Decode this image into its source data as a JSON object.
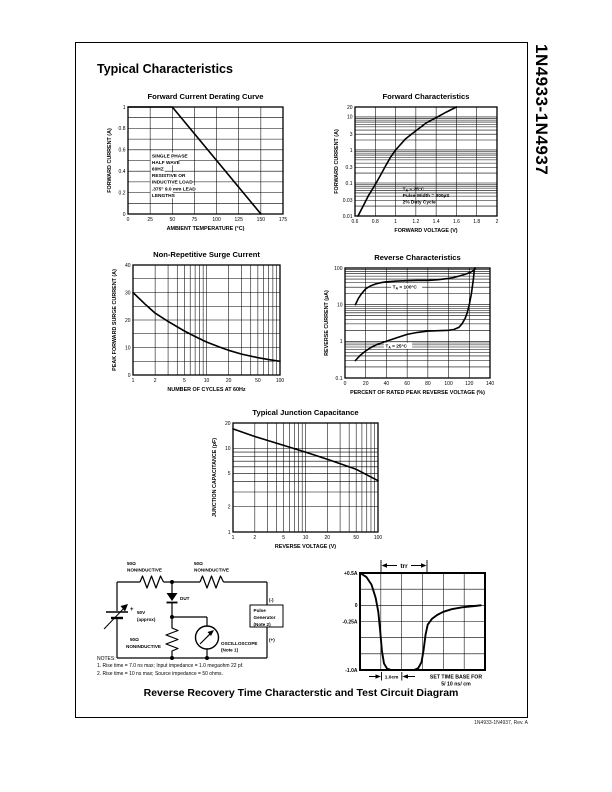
{
  "page": {
    "title": "Typical Characteristics",
    "side_label": "1N4933-1N4937",
    "footer": "1N4933-1N4937, Rev. A",
    "caption": "Reverse Recovery Time Characterstic and Test Circuit Diagram",
    "notes": {
      "heading": "NOTES:",
      "note1": "1. Rise time = 7.0 ns max; Input impedance = 1.0 megaohm 22 pf.",
      "note2": "2. Rise time = 10 ns max; Source impedance = 50 ohms."
    }
  },
  "circuit": {
    "r1_value": "50Ω",
    "r1_type": "NONINDUCTIVE",
    "r2_value": "50Ω",
    "r2_type": "NONINDUCTIVE",
    "r3_value": "50Ω",
    "r3_type": "NONINDUCTIVE",
    "dut_label": "DUT",
    "source_plus": "+",
    "source_value": "50V",
    "source_note": "(approx)",
    "scope_label": "OSCILLOSCOPE",
    "scope_note": "(Note 1)",
    "generator_line1": "Pulse",
    "generator_line2": "Generator",
    "generator_line3": "(Note 2)",
    "neg_terminal": "(-)",
    "pos_terminal": "(+)"
  },
  "trr": {
    "trr_label": "trr",
    "cm_label": "1.0cm",
    "timebase_line1": "SET TIME BASE FOR",
    "timebase_line2": "5/ 10 ns/ cm"
  },
  "chart_data": [
    {
      "type": "line",
      "title": "Forward Current Derating Curve",
      "xlabel": "AMBIENT TEMPERATURE (°C)",
      "ylabel": "FORWARD CURRENT (A)",
      "x": {
        "type": "linear",
        "min": 0,
        "max": 175,
        "grid_step": 25,
        "ticks": [
          0,
          25,
          50,
          75,
          100,
          125,
          150,
          175
        ]
      },
      "y": {
        "type": "linear",
        "min": 0,
        "max": 1,
        "grid_step": 0.1,
        "ticks": [
          1,
          0.8,
          0.6,
          0.4,
          0.2,
          0
        ]
      },
      "series": [
        {
          "name": "derating-line",
          "points": [
            [
              0,
              1
            ],
            [
              50,
              1
            ],
            [
              150,
              0
            ]
          ]
        }
      ],
      "annotations": [
        {
          "x": 27,
          "y": 0.53,
          "bg": true,
          "lines": [
            "SINGLE PHASE",
            "HALF WAVE",
            "60HZ",
            "RESISTIVE OR",
            "INDUCTIVE LOAD",
            ".375\" 9.0 mm LEAD",
            "LENGTHS"
          ]
        }
      ]
    },
    {
      "type": "line",
      "title": "Forward Characteristics",
      "xlabel": "FORWARD VOLTAGE (V)",
      "ylabel": "FORWARD CURRENT (A)",
      "x": {
        "type": "linear",
        "min": 0.6,
        "max": 2,
        "grid_step": 0.2,
        "ticks": [
          0.6,
          0.8,
          1,
          1.2,
          1.4,
          1.6,
          1.8,
          2
        ]
      },
      "y": {
        "type": "log",
        "min": 0.01,
        "max": 20,
        "ticks": [
          20,
          10,
          3,
          1,
          0.3,
          0.1,
          0.03,
          0.01
        ]
      },
      "series": [
        {
          "name": "forward-voltage-current",
          "points": [
            [
              0.63,
              0.01
            ],
            [
              0.68,
              0.02
            ],
            [
              0.73,
              0.04
            ],
            [
              0.8,
              0.09
            ],
            [
              0.85,
              0.17
            ],
            [
              0.9,
              0.32
            ],
            [
              0.95,
              0.6
            ],
            [
              1,
              1
            ],
            [
              1.1,
              2.2
            ],
            [
              1.2,
              3.8
            ],
            [
              1.3,
              6.5
            ],
            [
              1.4,
              9.5
            ],
            [
              1.5,
              14
            ],
            [
              1.6,
              20
            ]
          ]
        }
      ],
      "annotations": [
        {
          "x": 1.07,
          "y": 0.06,
          "bg": false,
          "lines": [
            "T_A = 25°C",
            "Pulse Width = 300µS",
            "2% Duty Cycle"
          ]
        }
      ]
    },
    {
      "type": "line",
      "title": "Non-Repetitive Surge Current",
      "xlabel": "NUMBER OF CYCLES AT 60Hz",
      "ylabel": "PEAK FORWARD SURGE CURRENT (A)",
      "x": {
        "type": "log",
        "min": 1,
        "max": 100,
        "ticks": [
          1,
          2,
          5,
          10,
          20,
          50,
          100
        ]
      },
      "y": {
        "type": "linear",
        "min": 0,
        "max": 40,
        "grid_step": 5,
        "ticks": [
          40,
          30,
          20,
          10,
          0
        ]
      },
      "series": [
        {
          "name": "surge-current",
          "points": [
            [
              1,
              30
            ],
            [
              1.5,
              25.5
            ],
            [
              2,
              22.5
            ],
            [
              3,
              19.5
            ],
            [
              5,
              16
            ],
            [
              7,
              14
            ],
            [
              10,
              12
            ],
            [
              15,
              10.2
            ],
            [
              20,
              9
            ],
            [
              30,
              7.6
            ],
            [
              50,
              6.3
            ],
            [
              70,
              5.6
            ],
            [
              100,
              5
            ]
          ]
        }
      ]
    },
    {
      "type": "line",
      "title": "Reverse Characteristics",
      "xlabel": "PERCENT OF RATED PEAK REVERSE VOLTAGE (%)",
      "ylabel": "REVERSE CURRENT (µA)",
      "x": {
        "type": "linear",
        "min": 0,
        "max": 140,
        "grid_step": 20,
        "ticks": [
          0,
          20,
          40,
          60,
          80,
          100,
          120,
          140
        ]
      },
      "y": {
        "type": "log",
        "min": 0.1,
        "max": 100,
        "ticks": [
          100,
          10,
          1,
          0.1
        ]
      },
      "series": [
        {
          "name": "TA-100C",
          "points": [
            [
              10,
              10
            ],
            [
              13,
              15
            ],
            [
              16,
              20
            ],
            [
              20,
              27
            ],
            [
              25,
              33
            ],
            [
              30,
              37
            ],
            [
              35,
              40
            ],
            [
              40,
              42
            ],
            [
              50,
              44
            ],
            [
              60,
              45
            ],
            [
              70,
              46
            ],
            [
              80,
              46
            ],
            [
              90,
              48
            ],
            [
              100,
              52
            ],
            [
              105,
              55
            ],
            [
              110,
              60
            ],
            [
              115,
              66
            ],
            [
              120,
              74
            ],
            [
              123,
              82
            ],
            [
              125,
              92
            ],
            [
              126,
              100
            ]
          ]
        },
        {
          "name": "TA-25C",
          "points": [
            [
              10,
              0.3
            ],
            [
              15,
              0.42
            ],
            [
              20,
              0.55
            ],
            [
              25,
              0.68
            ],
            [
              30,
              0.8
            ],
            [
              40,
              1
            ],
            [
              50,
              1.25
            ],
            [
              60,
              1.55
            ],
            [
              70,
              1.75
            ],
            [
              80,
              1.9
            ],
            [
              90,
              1.95
            ],
            [
              100,
              2
            ],
            [
              105,
              2.1
            ],
            [
              110,
              2.4
            ],
            [
              113,
              3
            ],
            [
              116,
              4.2
            ],
            [
              118,
              6
            ],
            [
              120,
              10
            ],
            [
              122,
              20
            ],
            [
              124,
              50
            ],
            [
              125,
              100
            ]
          ]
        }
      ],
      "annotations": [
        {
          "x": 46,
          "y": 28,
          "bg": true,
          "lines": [
            "T_A = 100°C"
          ]
        },
        {
          "x": 39,
          "y": 0.68,
          "bg": true,
          "lines": [
            "T_A = 25°C"
          ]
        }
      ]
    },
    {
      "type": "line",
      "title": "Typical Junction Capacitance",
      "xlabel": "REVERSE VOLTAGE (V)",
      "ylabel": "JUNCTION CAPACITANCE (pF)",
      "x": {
        "type": "log",
        "min": 1,
        "max": 100,
        "ticks": [
          1,
          2,
          5,
          10,
          20,
          50,
          100
        ]
      },
      "y": {
        "type": "log",
        "min": 1,
        "max": 20,
        "ticks": [
          20,
          10,
          5,
          2,
          1
        ]
      },
      "series": [
        {
          "name": "junction-capacitance",
          "points": [
            [
              1,
              17
            ],
            [
              2,
              13.8
            ],
            [
              5,
              10.8
            ],
            [
              10,
              9
            ],
            [
              20,
              7.4
            ],
            [
              50,
              5.6
            ],
            [
              100,
              4.1
            ]
          ]
        }
      ]
    },
    {
      "type": "line",
      "title": "",
      "thick_border": true,
      "curve_width": 1.9,
      "bold_ticks": true,
      "x": {
        "type": "linear",
        "min": 0,
        "max": 6,
        "grid_step": 1,
        "ticks": []
      },
      "y": {
        "type": "linear",
        "min": -1,
        "max": 0.5,
        "grid_step": 0.25,
        "ticks": [
          0.5,
          0,
          -0.25,
          -1
        ],
        "tick_labels": [
          "+0.5A",
          "0",
          "-0.25A",
          "-1.0A"
        ]
      },
      "series": [
        {
          "name": "reverse-recovery-waveform",
          "points": [
            [
              0,
              0.5
            ],
            [
              0.3,
              0.44
            ],
            [
              0.55,
              0.32
            ],
            [
              0.75,
              0.12
            ],
            [
              0.88,
              -0.1
            ],
            [
              0.97,
              -0.4
            ],
            [
              1.05,
              -0.7
            ],
            [
              1.15,
              -0.9
            ],
            [
              1.3,
              -0.98
            ],
            [
              1.5,
              -1
            ],
            [
              2.6,
              -1
            ],
            [
              2.8,
              -0.97
            ],
            [
              2.95,
              -0.88
            ],
            [
              3.05,
              -0.7
            ],
            [
              3.15,
              -0.45
            ],
            [
              3.25,
              -0.3
            ],
            [
              3.45,
              -0.21
            ],
            [
              3.7,
              -0.15
            ],
            [
              4,
              -0.1
            ],
            [
              4.4,
              -0.06
            ],
            [
              4.9,
              -0.03
            ],
            [
              5.5,
              -0.01
            ],
            [
              5.8,
              0
            ]
          ]
        }
      ]
    }
  ]
}
